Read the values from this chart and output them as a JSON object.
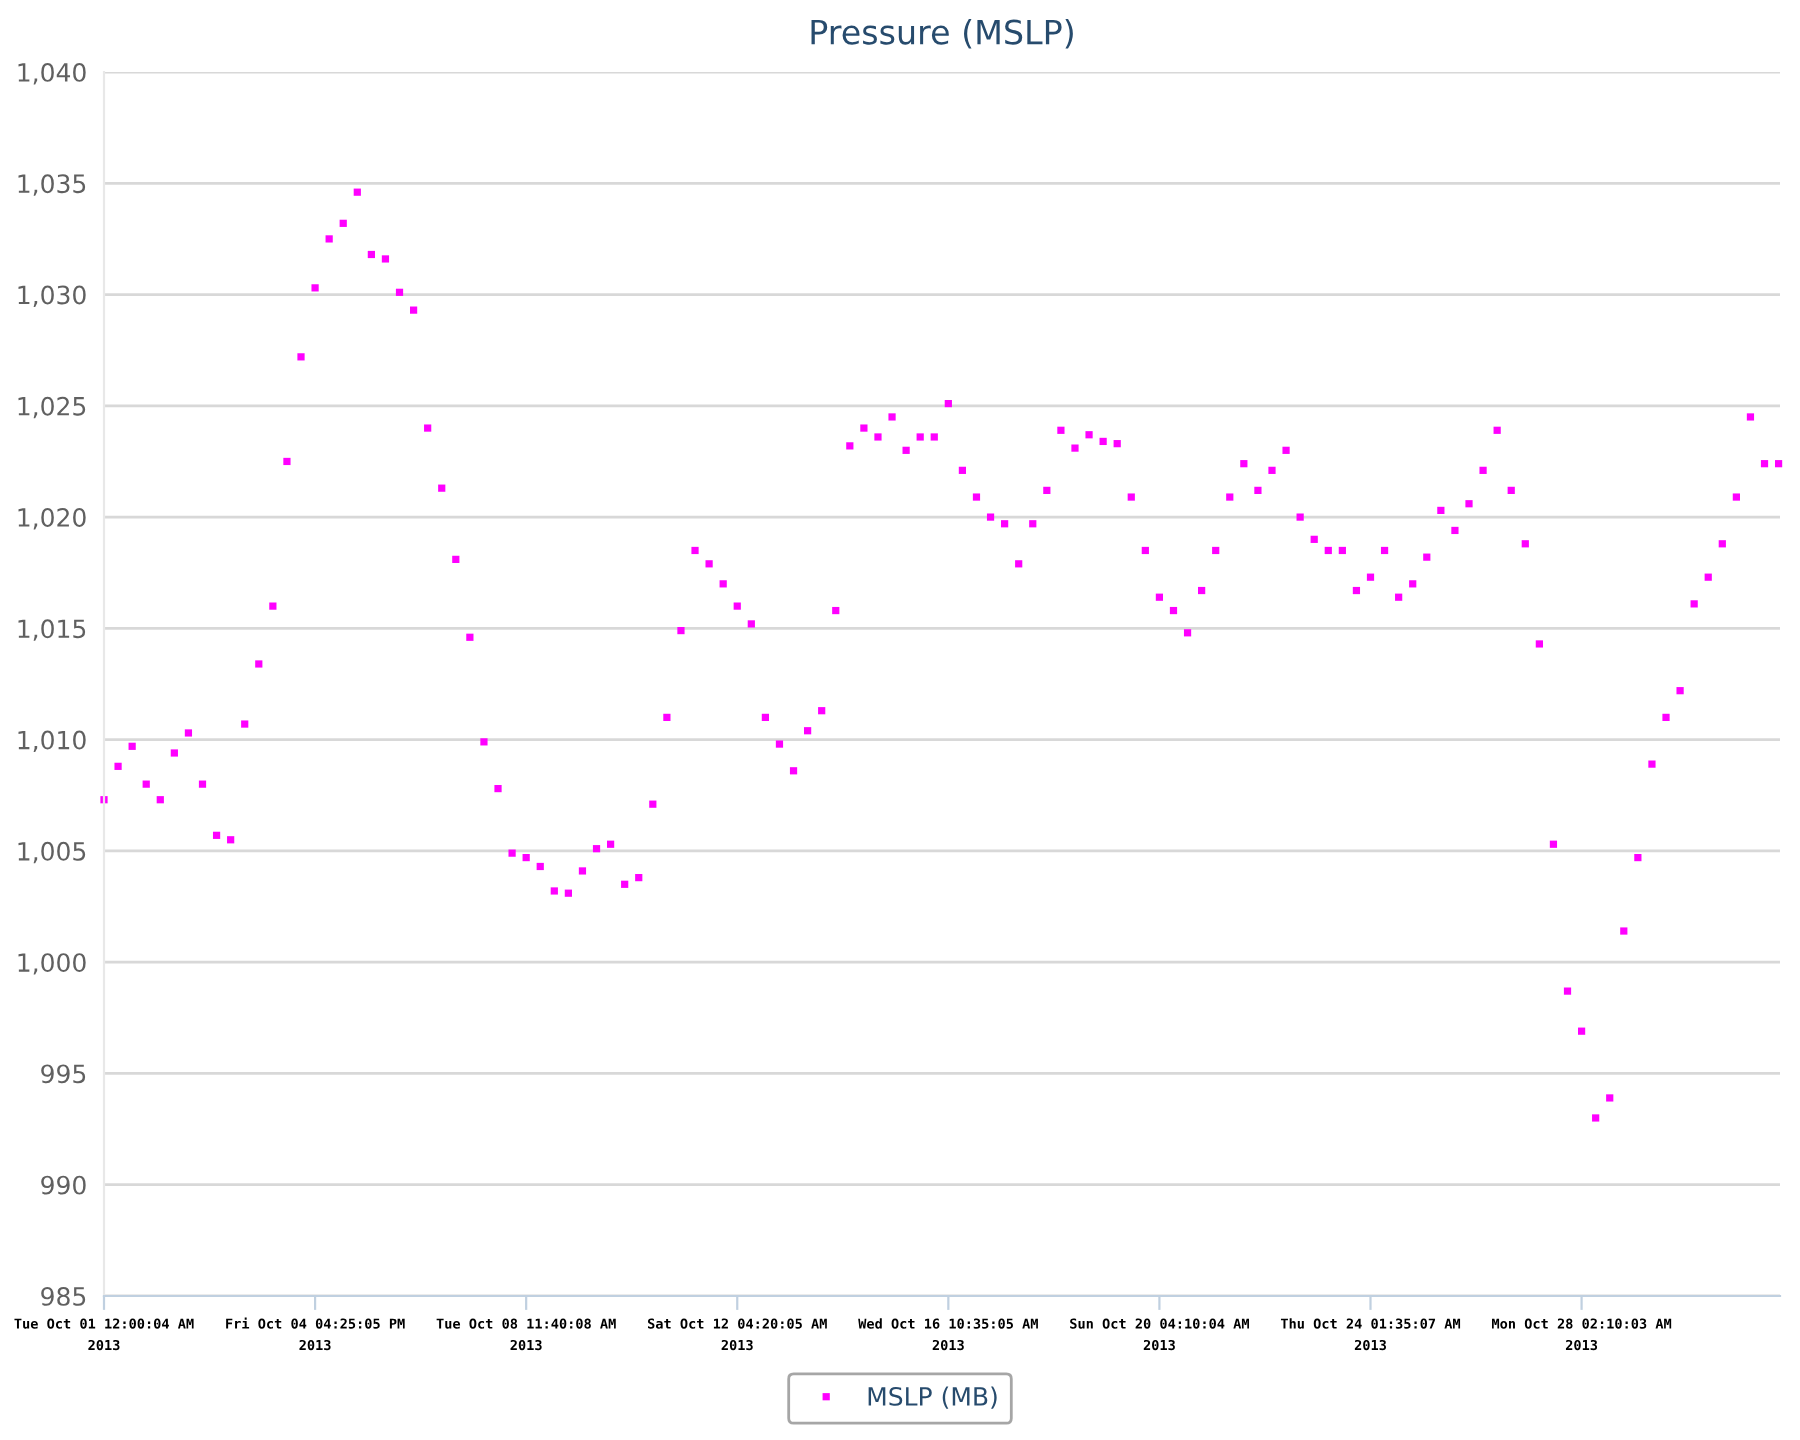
{
  "chart_data": {
    "type": "scatter",
    "title": "Pressure (MSLP)",
    "categories": [
      "Tue Oct 01 12:00:04 AM\n2013",
      null,
      null,
      null,
      null,
      null,
      null,
      null,
      null,
      null,
      null,
      null,
      null,
      null,
      null,
      "Fri Oct 04 04:25:05 PM\n2013",
      null,
      null,
      null,
      null,
      null,
      null,
      null,
      null,
      null,
      null,
      null,
      null,
      null,
      null,
      "Tue Oct 08 11:40:08 AM\n2013",
      null,
      null,
      null,
      null,
      null,
      null,
      null,
      null,
      null,
      null,
      null,
      null,
      null,
      null,
      "Sat Oct 12 04:20:05 AM\n2013",
      null,
      null,
      null,
      null,
      null,
      null,
      null,
      null,
      null,
      null,
      null,
      null,
      null,
      null,
      "Wed Oct 16 10:35:05 AM\n2013",
      null,
      null,
      null,
      null,
      null,
      null,
      null,
      null,
      null,
      null,
      null,
      null,
      null,
      null,
      "Sun Oct 20 04:10:04 AM\n2013",
      null,
      null,
      null,
      null,
      null,
      null,
      null,
      null,
      null,
      null,
      null,
      null,
      null,
      null,
      "Thu Oct 24 01:35:07 AM\n2013",
      null,
      null,
      null,
      null,
      null,
      null,
      null,
      null,
      null,
      null,
      null,
      null,
      null,
      null,
      "Mon Oct 28 02:10:03 AM\n2013",
      null,
      null,
      null,
      null,
      null,
      null,
      null,
      null,
      null,
      null,
      null,
      null,
      null,
      null
    ],
    "series": [
      {
        "name": "MSLP (MB)",
        "color": "#ff00ff",
        "values": [
          1007.3,
          1008.8,
          1009.7,
          1008,
          1007.3,
          1009.4,
          1010.3,
          1008,
          1005.7,
          1005.5,
          1010.7,
          1013.4,
          1016,
          1022.5,
          1027.2,
          1030.3,
          1032.5,
          1033.2,
          1034.6,
          1031.8,
          1031.6,
          1030.1,
          1029.3,
          1024,
          1021.3,
          1018.1,
          1014.6,
          1009.9,
          1007.8,
          1004.9,
          1004.7,
          1004.3,
          1003.2,
          1003.1,
          1004.1,
          1005.1,
          1005.3,
          1003.5,
          1003.8,
          1007.1,
          1011,
          1014.9,
          1018.5,
          1017.9,
          1017,
          1016,
          1015.2,
          1011,
          1009.8,
          1008.6,
          1010.4,
          1011.3,
          1015.8,
          1023.2,
          1024,
          1023.6,
          1024.5,
          1023,
          1023.6,
          1023.6,
          1025.1,
          1022.1,
          1020.9,
          1020,
          1019.7,
          1017.9,
          1019.7,
          1021.2,
          1023.9,
          1023.1,
          1023.7,
          1023.4,
          1023.3,
          1020.9,
          1018.5,
          1016.4,
          1015.8,
          1014.8,
          1016.7,
          1018.5,
          1020.9,
          1022.4,
          1021.2,
          1022.1,
          1023,
          1020,
          1019,
          1018.5,
          1018.5,
          1016.7,
          1017.3,
          1018.5,
          1016.4,
          1017,
          1018.2,
          1020.3,
          1019.4,
          1020.6,
          1022.1,
          1023.9,
          1021.2,
          1018.8,
          1014.3,
          1005.3,
          998.7,
          996.9,
          993,
          993.9,
          1001.4,
          1004.7,
          1008.9,
          1011,
          1012.2,
          1016.1,
          1017.3,
          1018.8,
          1020.9,
          1024.5,
          1022.4,
          1022.4
        ]
      }
    ],
    "ylim": [
      985,
      1040
    ],
    "yticks": [
      985,
      {
        "value": 990,
        "label": "990"
      },
      {
        "value": 995,
        "label": "995"
      },
      {
        "value": 1000,
        "label": "1,000"
      },
      {
        "value": 1005,
        "label": "1,005"
      },
      {
        "value": 1010,
        "label": "1,010"
      },
      {
        "value": 1015,
        "label": "1,015"
      },
      {
        "value": 1020,
        "label": "1,020"
      },
      {
        "value": 1025,
        "label": "1,025"
      },
      {
        "value": 1030,
        "label": "1,030"
      },
      {
        "value": 1035,
        "label": "1,035"
      },
      {
        "value": 1040,
        "label": "1,040"
      }
    ],
    "grid": "y",
    "legend": "bottom",
    "marker": "square"
  }
}
